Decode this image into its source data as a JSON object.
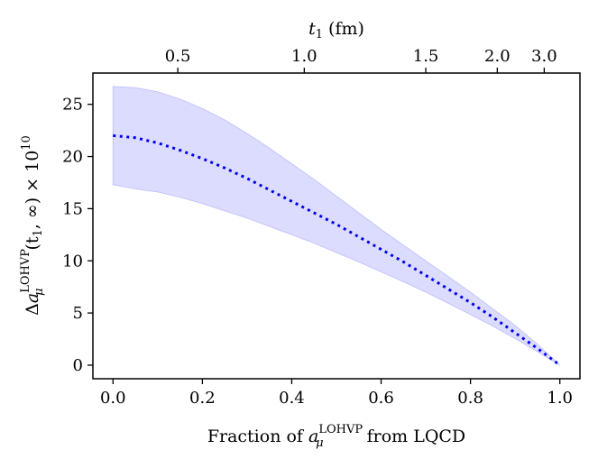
{
  "chart_data": {
    "type": "line",
    "title": "",
    "xlabel": {
      "prefix": "Fraction of ",
      "symbol": "a",
      "sup": "LOHVP",
      "sub": "μ",
      "suffix": " from LQCD"
    },
    "ylabel": {
      "prefix": "Δ",
      "symbol": "a",
      "sup": "LOHVP",
      "sub": "μ",
      "suffix": "(t",
      "sub2": "1",
      "suffix2": ", ∞) × 10",
      "exp": "10"
    },
    "top_axis_label": {
      "symbol": "t",
      "sub": "1",
      "unit": " (fm)"
    },
    "xlim": [
      -0.045,
      1.045
    ],
    "ylim": [
      -1.3,
      28
    ],
    "x_ticks": [
      0.0,
      0.2,
      0.4,
      0.6,
      0.8,
      1.0
    ],
    "x_tick_labels": [
      "0.0",
      "0.2",
      "0.4",
      "0.6",
      "0.8",
      "1.0"
    ],
    "y_ticks": [
      0,
      5,
      10,
      15,
      20,
      25
    ],
    "y_tick_labels": [
      "0",
      "5",
      "10",
      "15",
      "20",
      "25"
    ],
    "top_ticks": [
      {
        "label": "0.5",
        "position": 0.145
      },
      {
        "label": "1.0",
        "position": 0.428
      },
      {
        "label": "1.5",
        "position": 0.7
      },
      {
        "label": "2.0",
        "position": 0.86
      },
      {
        "label": "3.0",
        "position": 0.965
      }
    ],
    "series": [
      {
        "name": "central",
        "style": "dotted",
        "color": "#0000ee",
        "x": [
          0,
          0.05,
          0.1,
          0.15,
          0.2,
          0.25,
          0.3,
          0.35,
          0.4,
          0.45,
          0.5,
          0.55,
          0.6,
          0.65,
          0.7,
          0.75,
          0.8,
          0.85,
          0.9,
          0.95,
          1.0
        ],
        "y": [
          22.0,
          21.8,
          21.3,
          20.6,
          19.8,
          18.9,
          17.9,
          16.8,
          15.7,
          14.6,
          13.5,
          12.3,
          11.1,
          9.9,
          8.6,
          7.3,
          6.0,
          4.6,
          3.1,
          1.6,
          0.0
        ],
        "lower": [
          17.3,
          16.9,
          16.6,
          16.1,
          15.5,
          14.8,
          14.1,
          13.3,
          12.5,
          11.7,
          10.8,
          9.9,
          8.95,
          8.0,
          7.0,
          5.95,
          4.85,
          3.75,
          2.55,
          1.3,
          0.0
        ],
        "upper": [
          26.7,
          26.6,
          26.2,
          25.5,
          24.6,
          23.5,
          22.2,
          20.8,
          19.3,
          17.8,
          16.2,
          14.6,
          13.0,
          11.5,
          10.0,
          8.5,
          7.0,
          5.4,
          3.8,
          2.0,
          0.0
        ]
      }
    ],
    "colors": {
      "band_fill": "#dcdcff",
      "band_edge": "#c4c4ff",
      "line": "#0000ee",
      "axes": "#000000"
    }
  }
}
